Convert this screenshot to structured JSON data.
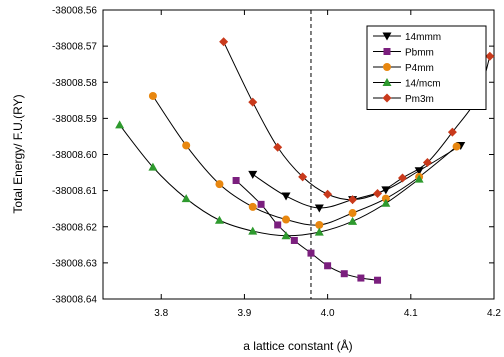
{
  "chart_data": {
    "type": "line",
    "xlabel": "a lattice constant (Å)",
    "ylabel": "Total Energy/ F.U.(RY)",
    "xlim": [
      3.73,
      4.2
    ],
    "ylim": [
      -38008.64,
      -38008.56
    ],
    "x_ticks": [
      3.8,
      3.9,
      4.0,
      4.1,
      4.2
    ],
    "x_tick_labels": [
      "3.8",
      "3.9",
      "4.0",
      "4.1",
      "4.2"
    ],
    "y_ticks": [
      -38008.64,
      -38008.63,
      -38008.62,
      -38008.61,
      -38008.6,
      -38008.59,
      -38008.58,
      -38008.57,
      -38008.56
    ],
    "y_tick_labels": [
      "-38008.64",
      "-38008.63",
      "-38008.62",
      "-38008.61",
      "-38008.60",
      "-38008.59",
      "-38008.58",
      "-38008.57",
      "-38008.56"
    ],
    "vline_x": 3.98,
    "legend_position": "top-right",
    "series": [
      {
        "name": "14mmm",
        "marker": "triangle-down",
        "color": "#000000",
        "x": [
          3.91,
          3.95,
          3.99,
          4.03,
          4.07,
          4.11,
          4.16
        ],
        "y": [
          -38008.6055,
          -38008.6115,
          -38008.6148,
          -38008.6125,
          -38008.6098,
          -38008.6045,
          -38008.5975
        ]
      },
      {
        "name": "Pbmm",
        "marker": "square",
        "color": "#7b1f7e",
        "x": [
          3.89,
          3.92,
          3.94,
          3.96,
          3.98,
          4.0,
          4.02,
          4.04,
          4.06
        ],
        "y": [
          -38008.6072,
          -38008.6138,
          -38008.6195,
          -38008.6238,
          -38008.6273,
          -38008.6308,
          -38008.633,
          -38008.6342,
          -38008.6348
        ]
      },
      {
        "name": "P4mm",
        "marker": "circle",
        "color": "#e8870f",
        "x": [
          3.79,
          3.83,
          3.87,
          3.91,
          3.95,
          3.99,
          4.03,
          4.07,
          4.11,
          4.155
        ],
        "y": [
          -38008.5838,
          -38008.5975,
          -38008.6082,
          -38008.6145,
          -38008.618,
          -38008.6195,
          -38008.6162,
          -38008.6122,
          -38008.6062,
          -38008.5978
        ]
      },
      {
        "name": "14/mcm",
        "marker": "triangle-up",
        "color": "#2e9a2e",
        "x": [
          3.75,
          3.79,
          3.83,
          3.87,
          3.91,
          3.95,
          3.99,
          4.03,
          4.07,
          4.11
        ],
        "y": [
          -38008.5918,
          -38008.6035,
          -38008.6122,
          -38008.6182,
          -38008.6212,
          -38008.6225,
          -38008.6215,
          -38008.6185,
          -38008.6135,
          -38008.6068
        ]
      },
      {
        "name": "Pm3m",
        "marker": "diamond",
        "color": "#c93a1c",
        "x": [
          3.875,
          3.91,
          3.94,
          3.97,
          4.0,
          4.03,
          4.06,
          4.09,
          4.12,
          4.15,
          4.18,
          4.195
        ],
        "y": [
          -38008.5688,
          -38008.5855,
          -38008.598,
          -38008.6062,
          -38008.611,
          -38008.6125,
          -38008.6108,
          -38008.6065,
          -38008.6022,
          -38008.5938,
          -38008.5842,
          -38008.5728
        ]
      }
    ]
  }
}
